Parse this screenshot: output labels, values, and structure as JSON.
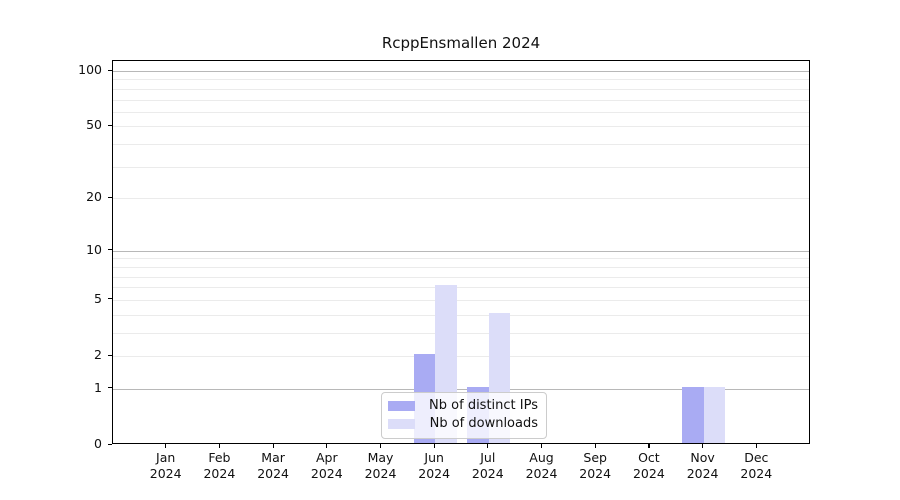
{
  "title": "RcppEnsmallen 2024",
  "colors": {
    "distinct_ips_bar": "#a9abf3",
    "downloads_bar": "#dcddf9",
    "grid_major": "#b8b8b8",
    "grid_minor": "#ebebeb",
    "axis": "#000000",
    "legend_border": "#cccccc"
  },
  "legend": {
    "items": [
      {
        "label": "Nb of distinct IPs",
        "color": "#a9abf3"
      },
      {
        "label": "Nb of downloads",
        "color": "#dcddf9"
      }
    ]
  },
  "chart_data": {
    "type": "bar",
    "title": "RcppEnsmallen 2024",
    "categories": [
      "Jan",
      "Feb",
      "Mar",
      "Apr",
      "May",
      "Jun",
      "Jul",
      "Aug",
      "Sep",
      "Oct",
      "Nov",
      "Dec"
    ],
    "year": "2024",
    "series": [
      {
        "name": "Nb of distinct IPs",
        "color": "#a9abf3",
        "values": [
          0,
          0,
          0,
          0,
          0,
          2,
          1,
          0,
          0,
          0,
          1,
          0
        ]
      },
      {
        "name": "Nb of downloads",
        "color": "#dcddf9",
        "values": [
          0,
          0,
          0,
          0,
          0,
          6,
          4,
          0,
          0,
          0,
          1,
          0
        ]
      }
    ],
    "xlabel": "",
    "ylabel": "",
    "yscale": "log1p",
    "ylim": [
      0,
      113
    ],
    "y_tick_values": [
      0,
      1,
      2,
      5,
      10,
      20,
      50,
      100
    ],
    "y_major_gridlines": [
      1,
      10,
      100
    ],
    "y_minor_gridlines": [
      2,
      3,
      4,
      5,
      6,
      7,
      8,
      9,
      20,
      30,
      40,
      50,
      60,
      70,
      80,
      90
    ],
    "grid": "horizontal",
    "legend_position": "lower center"
  }
}
